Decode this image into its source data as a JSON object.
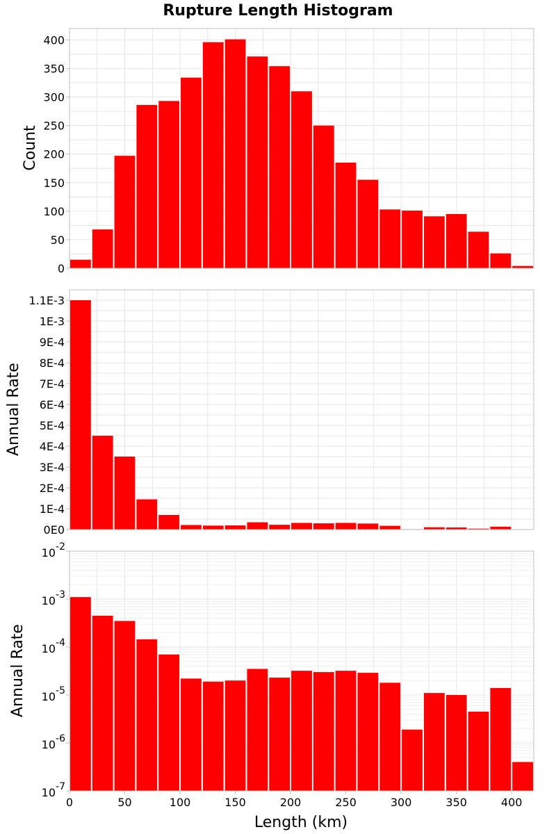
{
  "chart_data": [
    {
      "type": "bar",
      "title": "Rupture Length Histogram",
      "xlabel": "",
      "ylabel": "Count",
      "bin_width": 20,
      "xlim": [
        0,
        420
      ],
      "ylim": [
        0,
        420
      ],
      "yscale": "linear",
      "grid": true,
      "x_tick_labels_shown": false,
      "color": "#ff0000",
      "x": [
        10,
        30,
        50,
        70,
        90,
        110,
        130,
        150,
        170,
        190,
        210,
        230,
        250,
        270,
        290,
        310,
        330,
        350,
        370,
        390,
        410
      ],
      "values": [
        15,
        68,
        197,
        286,
        293,
        334,
        396,
        401,
        371,
        354,
        310,
        250,
        185,
        155,
        103,
        101,
        91,
        95,
        64,
        26,
        4
      ],
      "yticks": [
        0,
        50,
        100,
        150,
        200,
        250,
        300,
        350,
        400
      ],
      "ytick_labels": [
        "0",
        "50",
        "100",
        "150",
        "200",
        "250",
        "300",
        "350",
        "400"
      ]
    },
    {
      "type": "bar",
      "title": "",
      "xlabel": "",
      "ylabel": "Annual Rate",
      "bin_width": 20,
      "xlim": [
        0,
        420
      ],
      "ylim": [
        0,
        0.00115
      ],
      "yscale": "linear",
      "grid": true,
      "x_tick_labels_shown": false,
      "color": "#ff0000",
      "x": [
        10,
        30,
        50,
        70,
        90,
        110,
        130,
        150,
        170,
        190,
        210,
        230,
        250,
        270,
        290,
        310,
        330,
        350,
        370,
        390,
        410
      ],
      "values": [
        0.0011,
        0.00045,
        0.00035,
        0.000145,
        7e-05,
        2.2e-05,
        1.9e-05,
        2e-05,
        3.5e-05,
        2.3e-05,
        3.2e-05,
        3e-05,
        3.2e-05,
        2.9e-05,
        1.8e-05,
        1.9e-06,
        1.1e-05,
        1e-05,
        4.5e-06,
        1.4e-05,
        4e-07
      ],
      "yticks": [
        0,
        0.0001,
        0.0002,
        0.0003,
        0.0004,
        0.0005,
        0.0006,
        0.0007,
        0.0008,
        0.0009,
        0.001,
        0.0011
      ],
      "ytick_labels": [
        "0E0",
        "1E-4",
        "2E-4",
        "3E-4",
        "4E-4",
        "5E-4",
        "6E-4",
        "7E-4",
        "8E-4",
        "9E-4",
        "1E-3",
        "1.1E-3"
      ]
    },
    {
      "type": "bar",
      "title": "",
      "xlabel": "Length (km)",
      "ylabel": "Annual Rate",
      "bin_width": 20,
      "xlim": [
        0,
        420
      ],
      "ylim": [
        1e-07,
        0.01
      ],
      "yscale": "log",
      "grid": true,
      "x_tick_labels_shown": true,
      "color": "#ff0000",
      "x": [
        10,
        30,
        50,
        70,
        90,
        110,
        130,
        150,
        170,
        190,
        210,
        230,
        250,
        270,
        290,
        310,
        330,
        350,
        370,
        390,
        410
      ],
      "values": [
        0.0011,
        0.00045,
        0.00035,
        0.000145,
        7e-05,
        2.2e-05,
        1.9e-05,
        2e-05,
        3.5e-05,
        2.3e-05,
        3.2e-05,
        3e-05,
        3.2e-05,
        2.9e-05,
        1.8e-05,
        1.9e-06,
        1.1e-05,
        1e-05,
        4.5e-06,
        1.4e-05,
        4e-07
      ],
      "yticks": [
        1e-07,
        1e-06,
        1e-05,
        0.0001,
        0.001,
        0.01
      ],
      "ytick_labels": [
        {
          "base": "10",
          "exp": "-7"
        },
        {
          "base": "10",
          "exp": "-6"
        },
        {
          "base": "10",
          "exp": "-5"
        },
        {
          "base": "10",
          "exp": "-4"
        },
        {
          "base": "10",
          "exp": "-3"
        },
        {
          "base": "10",
          "exp": "-2"
        }
      ],
      "xticks": [
        0,
        50,
        100,
        150,
        200,
        250,
        300,
        350,
        400
      ],
      "xtick_labels": [
        "0",
        "50",
        "100",
        "150",
        "200",
        "250",
        "300",
        "350",
        "400"
      ]
    }
  ]
}
